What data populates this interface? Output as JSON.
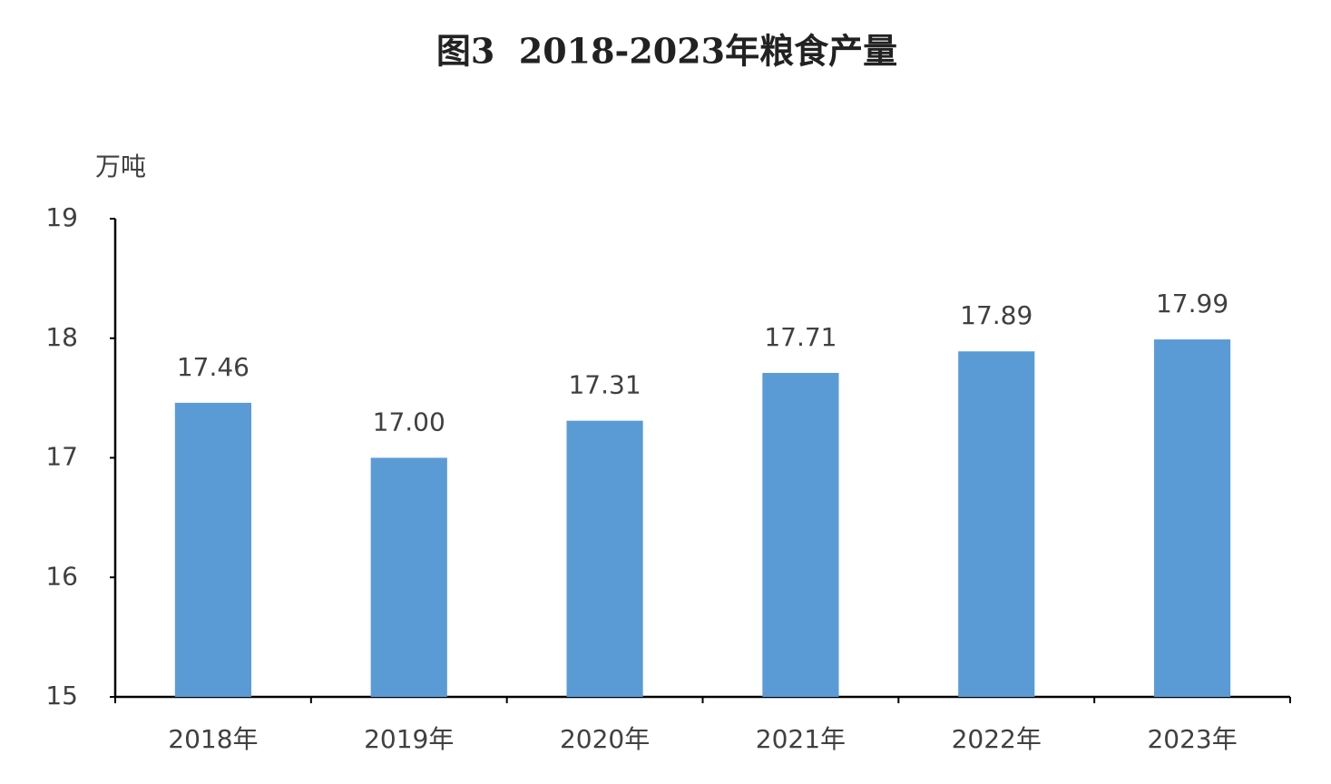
{
  "chart_data": {
    "type": "bar",
    "title": "图3  2018-2023年粮食产量",
    "y_label": "万吨",
    "categories": [
      "2018年",
      "2019年",
      "2020年",
      "2021年",
      "2022年",
      "2023年"
    ],
    "values": [
      17.46,
      17.0,
      17.31,
      17.71,
      17.89,
      17.99
    ],
    "value_labels": [
      "17.46",
      "17.00",
      "17.31",
      "17.71",
      "17.89",
      "17.99"
    ],
    "color": "#5b9bd5",
    "ylim": [
      15,
      19
    ],
    "yticks": [
      15,
      16,
      17,
      18,
      19
    ],
    "grid": false
  }
}
